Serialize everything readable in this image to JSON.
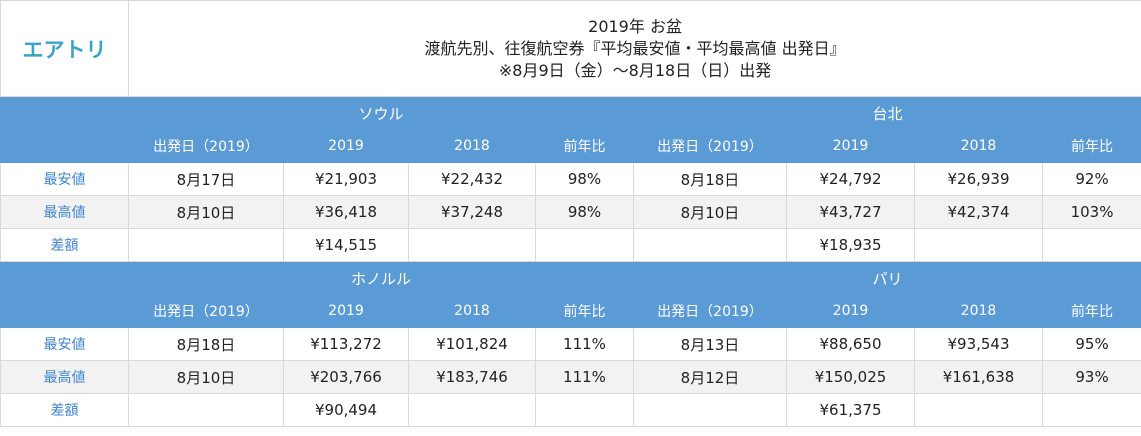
{
  "logo": "エアトリ",
  "title": {
    "line1": "2019年 お盆",
    "line2": "渡航先別、往復航空券『平均最安値・平均最高値 出発日』",
    "line3": "※8月9日（金）～8月18日（日）出発"
  },
  "sections": [
    {
      "cities": [
        "ソウル",
        "台北"
      ],
      "headers": [
        "出発日（2019）",
        "2019",
        "2018",
        "前年比",
        "出発日（2019）",
        "2019",
        "2018",
        "前年比"
      ],
      "rows": [
        {
          "label": "最安値",
          "cells": [
            "8月17日",
            "¥21,903",
            "¥22,432",
            "98%",
            "8月18日",
            "¥24,792",
            "¥26,939",
            "92%"
          ]
        },
        {
          "label": "最高値",
          "cells": [
            "8月10日",
            "¥36,418",
            "¥37,248",
            "98%",
            "8月10日",
            "¥43,727",
            "¥42,374",
            "103%"
          ]
        }
      ],
      "diff": {
        "label": "差額",
        "values": [
          "¥14,515",
          "¥18,935"
        ]
      }
    },
    {
      "cities": [
        "ホノルル",
        "パリ"
      ],
      "headers": [
        "出発日（2019）",
        "2019",
        "2018",
        "前年比",
        "出発日（2019）",
        "2019",
        "2018",
        "前年比"
      ],
      "rows": [
        {
          "label": "最安値",
          "cells": [
            "8月18日",
            "¥113,272",
            "¥101,824",
            "111%",
            "8月13日",
            "¥88,650",
            "¥93,543",
            "95%"
          ]
        },
        {
          "label": "最高値",
          "cells": [
            "8月10日",
            "¥203,766",
            "¥183,746",
            "111%",
            "8月12日",
            "¥150,025",
            "¥161,638",
            "93%"
          ]
        }
      ],
      "diff": {
        "label": "差額",
        "values": [
          "¥90,494",
          "¥61,375"
        ]
      }
    }
  ]
}
